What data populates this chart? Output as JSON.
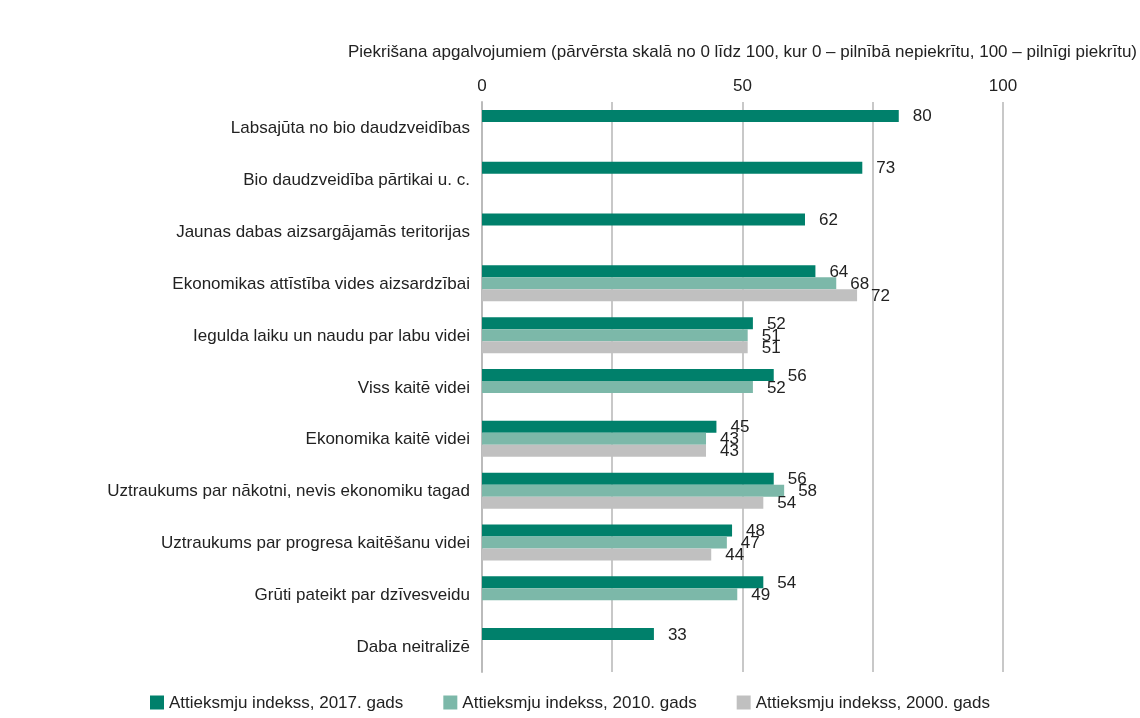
{
  "chart_data": {
    "type": "bar",
    "orientation": "horizontal",
    "xlabel": "Piekrišana apgalvojumiem (pārvērsta skalā no 0 līdz 100, kur 0 – pilnībā nepiekrītu, 100 – pilnīgi piekrītu)",
    "categories": [
      "Labsajūta no bio daudzveidības",
      "Bio daudzveidība pārtikai u. c.",
      "Jaunas dabas aizsargājamās teritorijas",
      "Ekonomikas attīstība vides aizsardzībai",
      "Iegulda laiku un naudu par labu videi",
      "Viss kaitē videi",
      "Ekonomika kaitē videi",
      "Uztraukums par nākotni, nevis ekonomiku tagad",
      "Uztraukums par progresa kaitēšanu videi",
      "Grūti pateikt par dzīvesveidu",
      "Daba neitralizē"
    ],
    "series": [
      {
        "name": "Attieksmju indekss, 2017. gads",
        "color": "#00806b",
        "values": [
          80,
          73,
          62,
          64,
          52,
          56,
          45,
          56,
          48,
          54,
          33
        ]
      },
      {
        "name": "Attieksmju indekss, 2010. gads",
        "color": "#7cb8a9",
        "values": [
          null,
          null,
          null,
          68,
          51,
          52,
          43,
          58,
          47,
          49,
          null
        ]
      },
      {
        "name": "Attieksmju indekss, 2000. gads",
        "color": "#c0c0c0",
        "values": [
          null,
          null,
          null,
          72,
          51,
          null,
          43,
          54,
          44,
          null,
          null
        ]
      }
    ],
    "xlim": [
      0,
      100
    ],
    "xticks": [
      0,
      {
        "value": 25,
        "label": null
      },
      50,
      {
        "value": 75,
        "label": null
      },
      100
    ],
    "grid": "x",
    "legend": "bottom",
    "data_labels": true
  }
}
